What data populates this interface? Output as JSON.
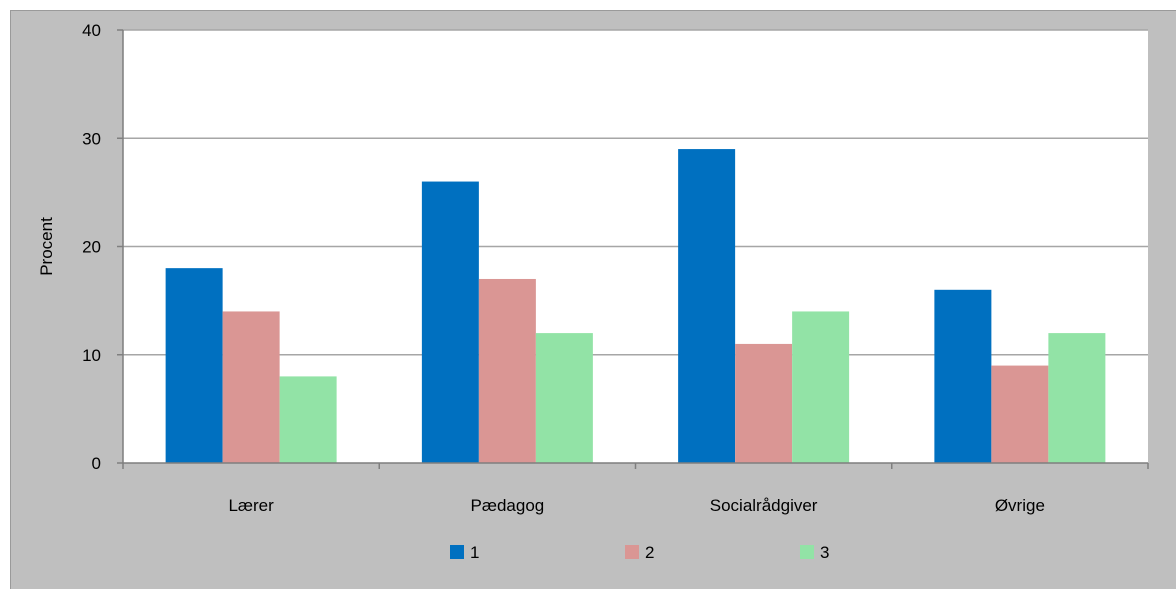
{
  "chart_data": {
    "type": "bar",
    "title": "",
    "xlabel": "",
    "ylabel": "Procent",
    "categories": [
      "Lærer",
      "Pædagog",
      "Socialrådgiver",
      "Øvrige"
    ],
    "series": [
      {
        "name": "1",
        "color": "#0070c0",
        "values": [
          18,
          26,
          29,
          16
        ]
      },
      {
        "name": "2",
        "color": "#da9694",
        "values": [
          14,
          17,
          11,
          9
        ]
      },
      {
        "name": "3",
        "color": "#92e3a6",
        "values": [
          8,
          12,
          14,
          12
        ]
      }
    ],
    "ylim": [
      0,
      40
    ],
    "yticks": [
      0,
      10,
      20,
      30,
      40
    ],
    "grid": true,
    "legend_position": "bottom",
    "colors": {
      "background": "#bfbfbf",
      "plot_background": "#ffffff",
      "gridline": "#a6a6a6"
    }
  }
}
